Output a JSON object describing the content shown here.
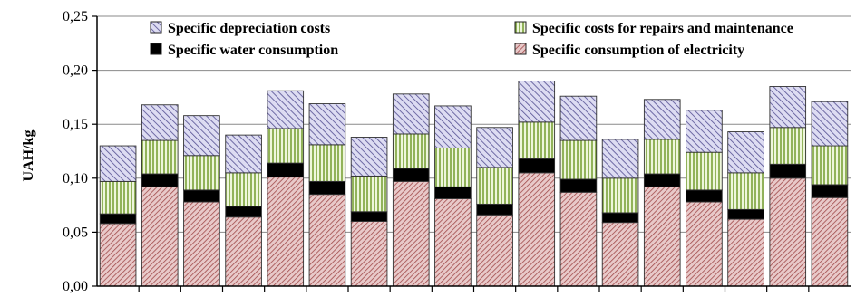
{
  "chart_data": {
    "type": "bar",
    "stacked": true,
    "ylabel": "UAH/kg",
    "ylim": [
      0,
      0.25
    ],
    "yticks": [
      "0,00",
      "0,05",
      "0,10",
      "0,15",
      "0,20",
      "0,25"
    ],
    "grid": true,
    "legend_position": "top, inside plot",
    "series": [
      {
        "name": "Specific consumption of electricity",
        "key": "electricity",
        "color": "#c98a8a",
        "values": [
          0.058,
          0.092,
          0.078,
          0.064,
          0.101,
          0.085,
          0.06,
          0.097,
          0.081,
          0.066,
          0.105,
          0.087,
          0.059,
          0.092,
          0.078,
          0.062,
          0.1,
          0.082
        ]
      },
      {
        "name": "Specific water consumption",
        "key": "water",
        "color": "#111111",
        "values": [
          0.009,
          0.012,
          0.011,
          0.01,
          0.013,
          0.012,
          0.009,
          0.012,
          0.011,
          0.01,
          0.013,
          0.012,
          0.009,
          0.012,
          0.011,
          0.009,
          0.013,
          0.012
        ]
      },
      {
        "name": "Specific costs for repairs and maintenance",
        "key": "repairs",
        "color": "#c8dfa0",
        "values": [
          0.03,
          0.031,
          0.032,
          0.031,
          0.032,
          0.034,
          0.033,
          0.032,
          0.036,
          0.034,
          0.034,
          0.036,
          0.032,
          0.032,
          0.035,
          0.034,
          0.034,
          0.036
        ]
      },
      {
        "name": "Specific depreciation costs",
        "key": "depreciation",
        "color": "#b8b6e0",
        "values": [
          0.033,
          0.033,
          0.037,
          0.035,
          0.035,
          0.038,
          0.036,
          0.037,
          0.039,
          0.037,
          0.038,
          0.041,
          0.036,
          0.037,
          0.039,
          0.038,
          0.038,
          0.041
        ]
      }
    ],
    "legend": [
      {
        "key": "depreciation",
        "label": "Specific depreciation costs"
      },
      {
        "key": "repairs",
        "label": "Specific costs for repairs and maintenance"
      },
      {
        "key": "water",
        "label": "Specific water consumption"
      },
      {
        "key": "electricity",
        "label": "Specific consumption of electricity"
      }
    ]
  }
}
